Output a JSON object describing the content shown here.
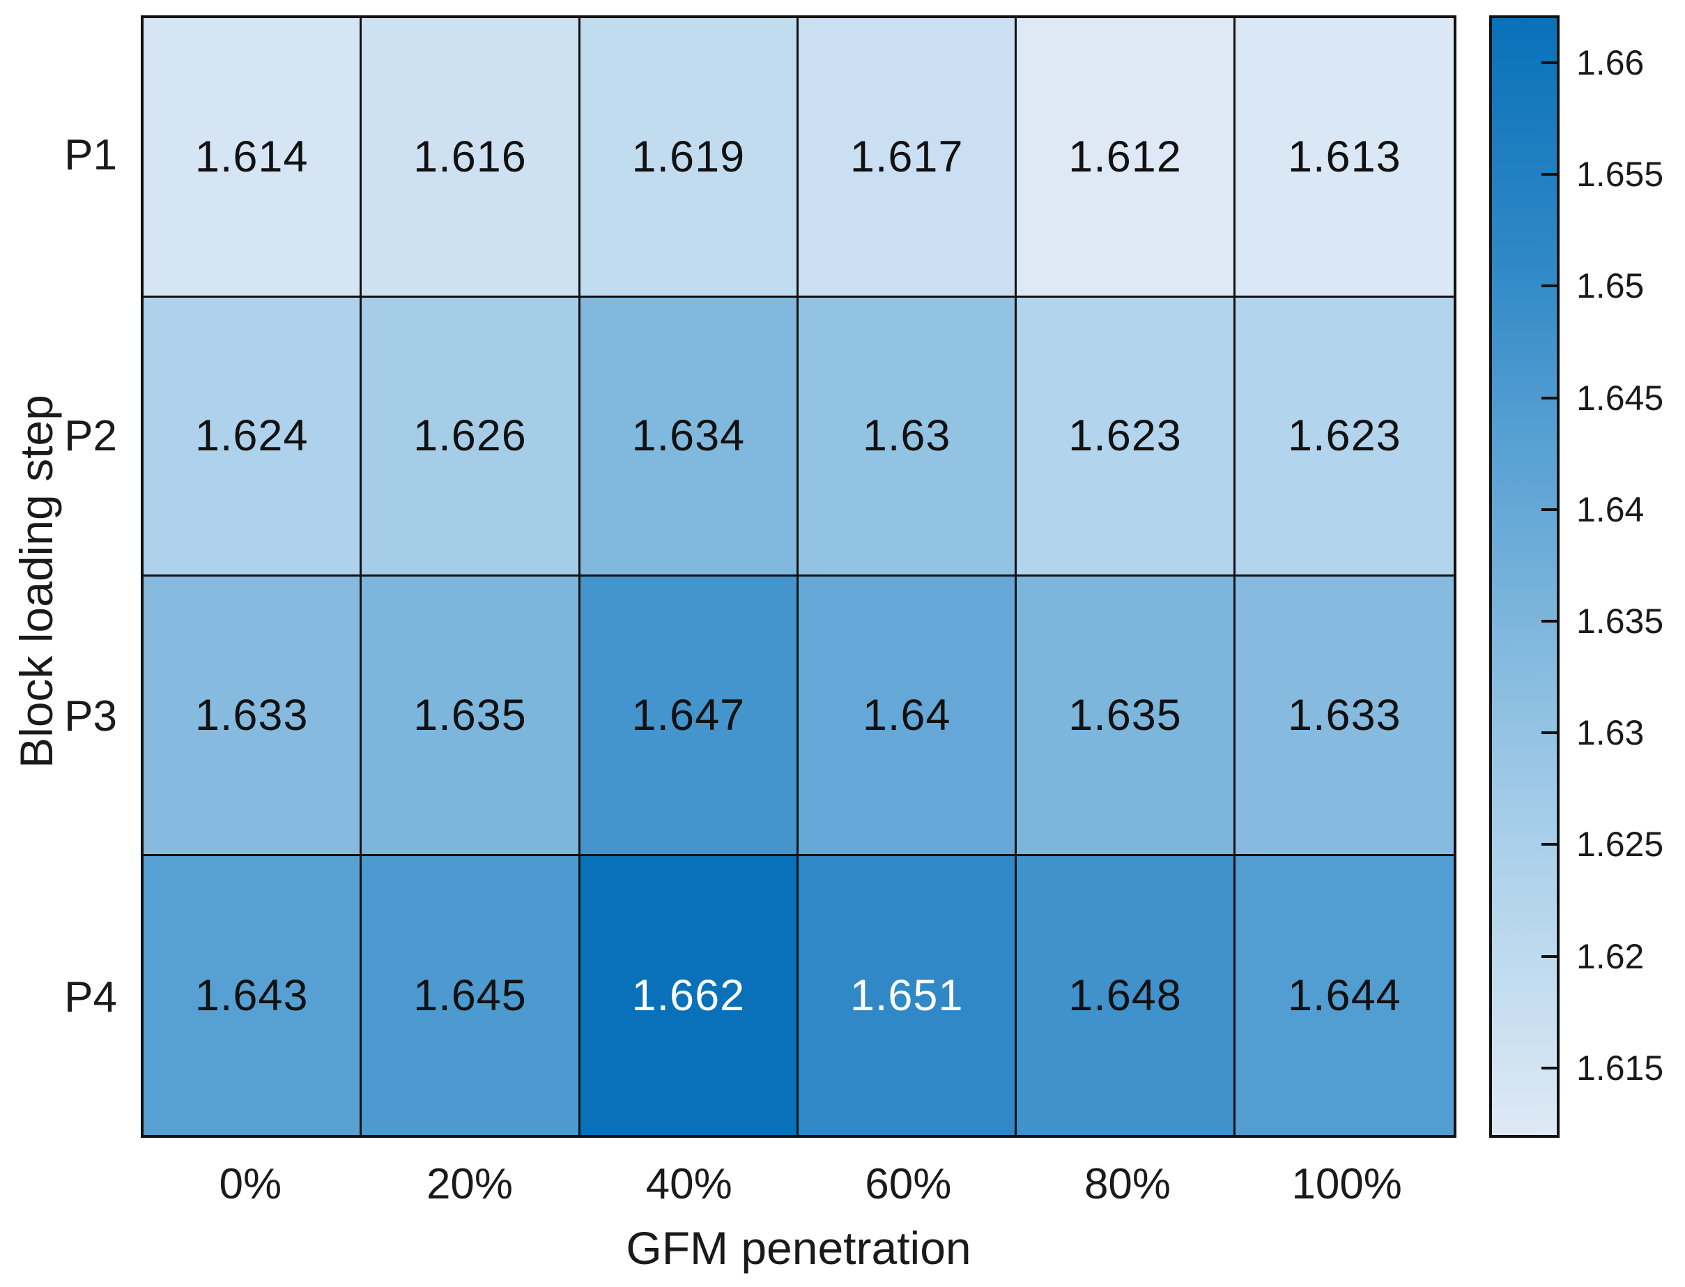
{
  "chart_data": {
    "type": "heatmap",
    "title": "",
    "xlabel": "GFM penetration",
    "ylabel": "Block loading step",
    "x_categories": [
      "0%",
      "20%",
      "40%",
      "60%",
      "80%",
      "100%"
    ],
    "y_categories": [
      "P1",
      "P2",
      "P3",
      "P4"
    ],
    "values": [
      [
        1.614,
        1.616,
        1.619,
        1.617,
        1.612,
        1.613
      ],
      [
        1.624,
        1.626,
        1.634,
        1.63,
        1.623,
        1.623
      ],
      [
        1.633,
        1.635,
        1.647,
        1.64,
        1.635,
        1.633
      ],
      [
        1.643,
        1.645,
        1.662,
        1.651,
        1.648,
        1.644
      ]
    ],
    "value_labels": [
      [
        "1.614",
        "1.616",
        "1.619",
        "1.617",
        "1.612",
        "1.613"
      ],
      [
        "1.624",
        "1.626",
        "1.634",
        "1.63",
        "1.623",
        "1.623"
      ],
      [
        "1.633",
        "1.635",
        "1.647",
        "1.64",
        "1.635",
        "1.633"
      ],
      [
        "1.643",
        "1.645",
        "1.662",
        "1.651",
        "1.648",
        "1.644"
      ]
    ],
    "colorbar": {
      "tick_labels": [
        "1.66",
        "1.655",
        "1.65",
        "1.645",
        "1.64",
        "1.635",
        "1.63",
        "1.625",
        "1.62",
        "1.615"
      ],
      "tick_values": [
        1.66,
        1.655,
        1.65,
        1.645,
        1.64,
        1.635,
        1.63,
        1.625,
        1.62,
        1.615
      ],
      "cmin": 1.612,
      "cmax": 1.662
    },
    "colormap_stops": [
      [
        1.612,
        "#dee9f5"
      ],
      [
        1.624,
        "#aed2eb"
      ],
      [
        1.633,
        "#86bbdf"
      ],
      [
        1.643,
        "#57a0d3"
      ],
      [
        1.651,
        "#3089c6"
      ],
      [
        1.662,
        "#0971b9"
      ]
    ],
    "white_text_threshold": 1.6495,
    "grid_color": "#111111",
    "legend_position": "right",
    "grid_on": true
  }
}
